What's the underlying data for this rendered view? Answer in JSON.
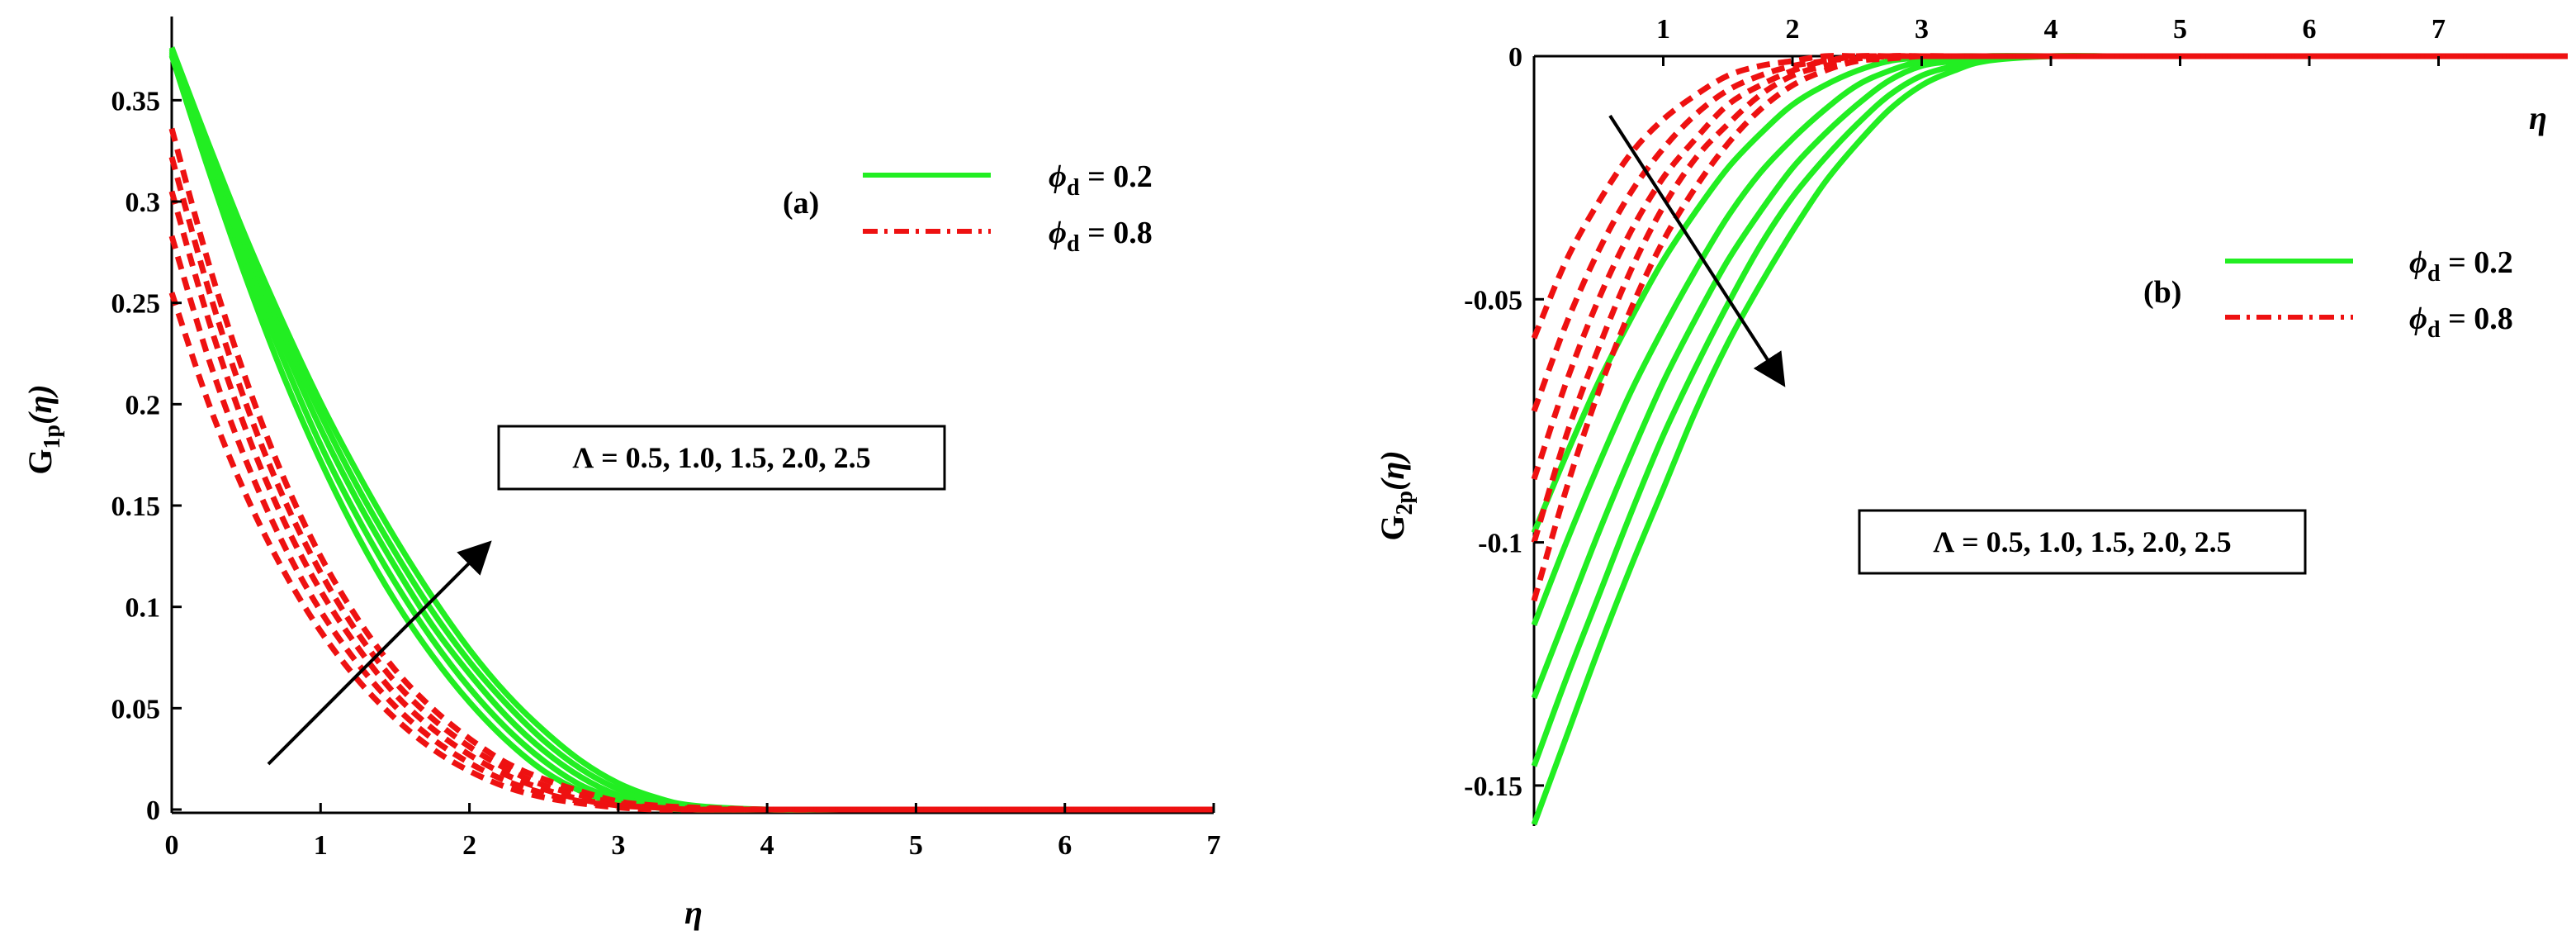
{
  "figure": {
    "panels": [
      {
        "label": "(a)",
        "ylabel_main": "G",
        "ylabel_sub": "1p",
        "ylabel_arg": "(η)",
        "xlabel": "η",
        "legend": [
          {
            "sym": "ϕ",
            "sub": "d",
            "text": " = 0.2",
            "color": "#22ee22",
            "dash": false
          },
          {
            "sym": "ϕ",
            "sub": "d",
            "text": " = 0.8",
            "color": "#ee1111",
            "dash": true
          }
        ],
        "annotation": "Λ = 0.5, 1.0, 1.5, 2.0, 2.5"
      },
      {
        "label": "(b)",
        "ylabel_main": "G",
        "ylabel_sub": "2p",
        "ylabel_arg": "(η)",
        "xlabel": "η",
        "legend": [
          {
            "sym": "ϕ",
            "sub": "d",
            "text": " = 0.2",
            "color": "#22ee22",
            "dash": false
          },
          {
            "sym": "ϕ",
            "sub": "d",
            "text": " = 0.8",
            "color": "#ee1111",
            "dash": true
          }
        ],
        "annotation": "Λ = 0.5, 1.0, 1.5, 2.0, 2.5"
      }
    ]
  },
  "chart_data": [
    {
      "type": "line",
      "title": "",
      "xlabel": "η",
      "ylabel": "G1p(η)",
      "xlim": [
        0,
        7
      ],
      "ylim": [
        0,
        0.375
      ],
      "xticks": [
        "0",
        "1",
        "2",
        "3",
        "4",
        "5",
        "6",
        "7"
      ],
      "yticks": [
        "0",
        "0.05",
        "0.1",
        "0.15",
        "0.2",
        "0.25",
        "0.3",
        "0.35"
      ],
      "x": [
        0,
        0.25,
        0.5,
        0.75,
        1,
        1.25,
        1.5,
        1.75,
        2,
        2.25,
        2.5,
        2.75,
        3,
        3.25,
        3.5,
        4,
        4.5,
        5,
        5.5,
        6,
        6.5,
        7
      ],
      "series": [
        {
          "name": "ϕd = 0.2",
          "color": "#22ee22",
          "dash": false,
          "curves": [
            [
              0.372,
              0.315,
              0.262,
              0.214,
              0.172,
              0.135,
              0.103,
              0.076,
              0.053,
              0.034,
              0.019,
              0.009,
              0.003,
              0.001,
              0,
              0,
              0,
              0,
              0,
              0,
              0,
              0
            ],
            [
              0.373,
              0.319,
              0.268,
              0.222,
              0.18,
              0.144,
              0.112,
              0.084,
              0.06,
              0.04,
              0.024,
              0.012,
              0.005,
              0.001,
              0,
              0,
              0,
              0,
              0,
              0,
              0,
              0
            ],
            [
              0.374,
              0.322,
              0.273,
              0.229,
              0.188,
              0.152,
              0.12,
              0.091,
              0.067,
              0.046,
              0.029,
              0.016,
              0.007,
              0.002,
              0.0005,
              0,
              0,
              0,
              0,
              0,
              0,
              0
            ],
            [
              0.375,
              0.325,
              0.278,
              0.235,
              0.195,
              0.159,
              0.127,
              0.098,
              0.073,
              0.052,
              0.034,
              0.02,
              0.01,
              0.004,
              0.001,
              0,
              0,
              0,
              0,
              0,
              0,
              0
            ],
            [
              0.376,
              0.328,
              0.282,
              0.24,
              0.201,
              0.166,
              0.134,
              0.105,
              0.079,
              0.057,
              0.039,
              0.024,
              0.013,
              0.006,
              0.002,
              0,
              0,
              0,
              0,
              0,
              0,
              0
            ]
          ]
        },
        {
          "name": "ϕd = 0.8",
          "color": "#ee1111",
          "dash": true,
          "curves": [
            [
              0.255,
              0.2,
              0.155,
              0.118,
              0.088,
              0.064,
              0.045,
              0.03,
              0.019,
              0.011,
              0.006,
              0.003,
              0.001,
              0,
              0,
              0,
              0,
              0,
              0,
              0,
              0,
              0
            ],
            [
              0.283,
              0.222,
              0.172,
              0.131,
              0.098,
              0.072,
              0.051,
              0.035,
              0.023,
              0.014,
              0.008,
              0.004,
              0.002,
              0.001,
              0,
              0,
              0,
              0,
              0,
              0,
              0,
              0
            ],
            [
              0.305,
              0.241,
              0.187,
              0.143,
              0.108,
              0.08,
              0.057,
              0.04,
              0.027,
              0.017,
              0.01,
              0.005,
              0.002,
              0.001,
              0,
              0,
              0,
              0,
              0,
              0,
              0,
              0
            ],
            [
              0.322,
              0.256,
              0.2,
              0.154,
              0.117,
              0.087,
              0.063,
              0.045,
              0.031,
              0.02,
              0.012,
              0.007,
              0.003,
              0.001,
              0.0005,
              0,
              0,
              0,
              0,
              0,
              0,
              0
            ],
            [
              0.336,
              0.269,
              0.212,
              0.164,
              0.125,
              0.094,
              0.069,
              0.05,
              0.035,
              0.023,
              0.015,
              0.009,
              0.004,
              0.002,
              0.001,
              0,
              0,
              0,
              0,
              0,
              0,
              0
            ]
          ]
        }
      ]
    },
    {
      "type": "line",
      "title": "",
      "xlabel": "η",
      "ylabel": "G2p(η)",
      "xlim": [
        0,
        8
      ],
      "ylim": [
        -0.158,
        0
      ],
      "xticks": [
        "1",
        "2",
        "3",
        "4",
        "5",
        "6",
        "7"
      ],
      "yticks": [
        "0",
        "-0.05",
        "-0.1",
        "-0.15"
      ],
      "x": [
        0,
        0.25,
        0.5,
        0.75,
        1,
        1.25,
        1.5,
        1.75,
        2,
        2.25,
        2.5,
        2.75,
        3,
        3.25,
        3.5,
        4,
        4.5,
        5,
        5.5,
        6,
        7,
        8
      ],
      "series": [
        {
          "name": "ϕd = 0.2",
          "color": "#22ee22",
          "dash": false,
          "curves": [
            [
              -0.098,
              -0.082,
              -0.067,
              -0.054,
              -0.042,
              -0.032,
              -0.023,
              -0.016,
              -0.01,
              -0.006,
              -0.003,
              -0.001,
              -0.0003,
              0,
              0,
              0,
              0,
              0,
              0,
              0,
              0,
              0
            ],
            [
              -0.117,
              -0.1,
              -0.084,
              -0.069,
              -0.056,
              -0.044,
              -0.033,
              -0.024,
              -0.017,
              -0.011,
              -0.006,
              -0.003,
              -0.001,
              -0.0003,
              0,
              0,
              0,
              0,
              0,
              0,
              0,
              0
            ],
            [
              -0.132,
              -0.115,
              -0.098,
              -0.082,
              -0.067,
              -0.054,
              -0.042,
              -0.032,
              -0.023,
              -0.016,
              -0.01,
              -0.005,
              -0.002,
              -0.001,
              0,
              0,
              0,
              0,
              0,
              0,
              0,
              0
            ],
            [
              -0.146,
              -0.128,
              -0.111,
              -0.094,
              -0.078,
              -0.064,
              -0.051,
              -0.039,
              -0.029,
              -0.021,
              -0.014,
              -0.008,
              -0.004,
              -0.002,
              -0.0005,
              0,
              0,
              0,
              0,
              0,
              0,
              0
            ],
            [
              -0.158,
              -0.14,
              -0.122,
              -0.105,
              -0.089,
              -0.073,
              -0.059,
              -0.047,
              -0.036,
              -0.026,
              -0.018,
              -0.011,
              -0.006,
              -0.003,
              -0.001,
              0,
              0,
              0,
              0,
              0,
              0,
              0
            ]
          ]
        },
        {
          "name": "ϕd = 0.8",
          "color": "#ee1111",
          "dash": true,
          "curves": [
            [
              -0.058,
              -0.042,
              -0.03,
              -0.02,
              -0.013,
              -0.008,
              -0.004,
              -0.002,
              -0.001,
              0,
              0,
              0,
              0,
              0,
              0,
              0,
              0,
              0,
              0,
              0,
              0,
              0
            ],
            [
              -0.073,
              -0.055,
              -0.04,
              -0.028,
              -0.019,
              -0.012,
              -0.007,
              -0.004,
              -0.002,
              -0.001,
              0,
              0,
              0,
              0,
              0,
              0,
              0,
              0,
              0,
              0,
              0,
              0
            ],
            [
              -0.087,
              -0.067,
              -0.05,
              -0.036,
              -0.025,
              -0.017,
              -0.01,
              -0.006,
              -0.003,
              -0.001,
              -0.0005,
              0,
              0,
              0,
              0,
              0,
              0,
              0,
              0,
              0,
              0,
              0
            ],
            [
              -0.1,
              -0.078,
              -0.06,
              -0.044,
              -0.031,
              -0.021,
              -0.014,
              -0.008,
              -0.004,
              -0.002,
              -0.001,
              0,
              0,
              0,
              0,
              0,
              0,
              0,
              0,
              0,
              0,
              0
            ],
            [
              -0.112,
              -0.089,
              -0.069,
              -0.052,
              -0.038,
              -0.027,
              -0.018,
              -0.011,
              -0.006,
              -0.003,
              -0.001,
              -0.0005,
              0,
              0,
              0,
              0,
              0,
              0,
              0,
              0,
              0,
              0
            ]
          ]
        }
      ]
    }
  ]
}
